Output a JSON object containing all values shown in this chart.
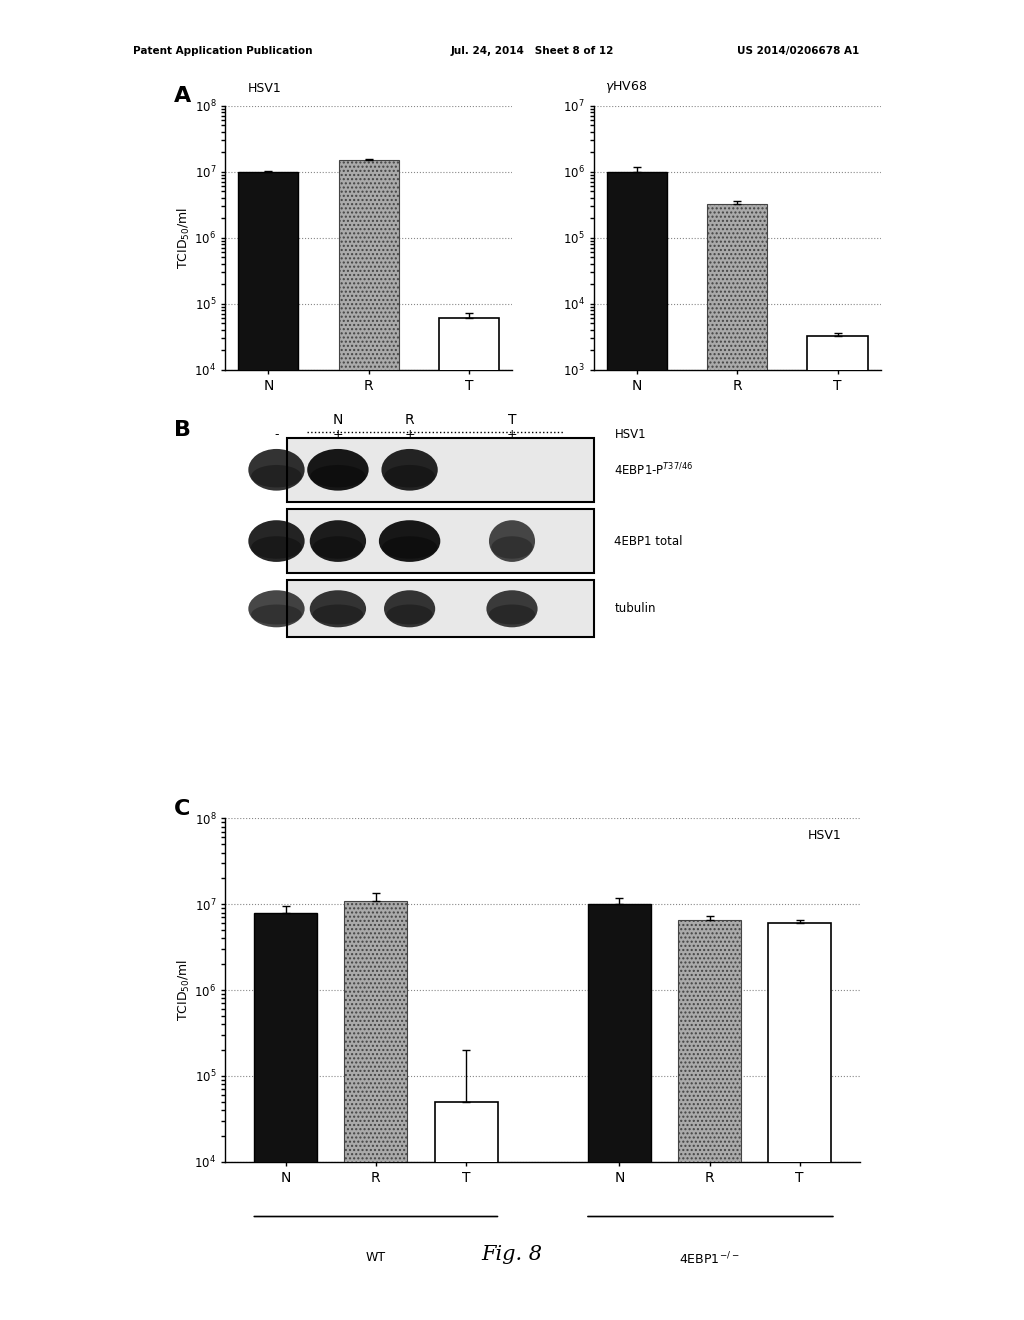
{
  "title_header_left": "Patent Application Publication",
  "title_header_mid": "Jul. 24, 2014   Sheet 8 of 12",
  "title_header_right": "US 2014/0206678 A1",
  "fig_label": "Fig. 8",
  "background_color": "#ffffff",
  "panelA_left": {
    "subtitle": "HSV1",
    "categories": [
      "N",
      "R",
      "T"
    ],
    "values": [
      10000000.0,
      15000000.0,
      60000.0
    ],
    "errors": [
      200000.0,
      300000.0,
      12000.0
    ],
    "colors": [
      "black",
      "gray_dot",
      "white"
    ],
    "ylim": [
      10000.0,
      100000000.0
    ],
    "yticks": [
      10000.0,
      100000.0,
      1000000.0,
      10000000.0,
      100000000.0
    ]
  },
  "panelA_right": {
    "subtitle": "γHV68",
    "categories": [
      "N",
      "R",
      "T"
    ],
    "values": [
      1000000.0,
      320000.0,
      3200.0
    ],
    "errors": [
      180000.0,
      40000.0,
      400.0
    ],
    "colors": [
      "black",
      "gray_dot",
      "white"
    ],
    "ylim": [
      1000.0,
      10000000.0
    ],
    "yticks": [
      1000.0,
      10000.0,
      100000.0,
      1000000.0,
      10000000.0
    ]
  },
  "panelC": {
    "subtitle": "HSV1",
    "group1_label": "WT",
    "group2_label": "4EBP1$^{-/-}$",
    "categories": [
      "N",
      "R",
      "T",
      "N",
      "R",
      "T"
    ],
    "values": [
      8000000.0,
      11000000.0,
      50000.0,
      10000000.0,
      6500000.0,
      6000000.0
    ],
    "errors": [
      1500000.0,
      2500000.0,
      150000.0,
      1800000.0,
      800000.0,
      500000.0
    ],
    "colors": [
      "black",
      "gray_dot",
      "white",
      "black",
      "gray_dot",
      "white"
    ],
    "ylim": [
      10000.0,
      100000000.0
    ],
    "yticks": [
      10000.0,
      100000.0,
      1000000.0,
      10000000.0,
      100000000.0
    ]
  }
}
